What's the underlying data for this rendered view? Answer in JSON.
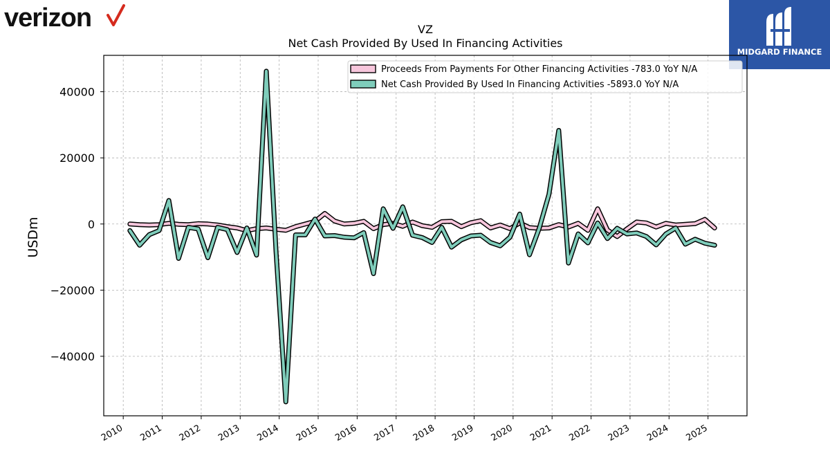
{
  "brand_left": {
    "wordmark": "verizon",
    "checkmark_color": "#d52b1e"
  },
  "brand_right": {
    "name": "MIDGARD FINANCE",
    "background": "#2c56a6"
  },
  "chart_data": {
    "type": "line",
    "title": "VZ",
    "subtitle": "Net Cash Provided By Used In Financing Activities",
    "ylabel": "USDm",
    "xlabel": "",
    "xlim": [
      2009.5,
      2026.0
    ],
    "ylim": [
      -58000,
      51000
    ],
    "x_ticks": [
      2010,
      2011,
      2012,
      2013,
      2014,
      2015,
      2016,
      2017,
      2018,
      2019,
      2020,
      2021,
      2022,
      2023,
      2024,
      2025
    ],
    "x_tick_labels": [
      "2010",
      "2011",
      "2012",
      "2013",
      "2014",
      "2015",
      "2016",
      "2017",
      "2018",
      "2019",
      "2020",
      "2021",
      "2022",
      "2023",
      "2024",
      "2025"
    ],
    "y_ticks": [
      -40000,
      -20000,
      0,
      20000,
      40000
    ],
    "y_tick_labels": [
      "−40000",
      "−20000",
      "0",
      "20000",
      "40000"
    ],
    "grid": true,
    "legend_position": "top-right",
    "x": [
      2010.17,
      2010.42,
      2010.67,
      2010.92,
      2011.17,
      2011.42,
      2011.67,
      2011.92,
      2012.17,
      2012.42,
      2012.67,
      2012.92,
      2013.17,
      2013.42,
      2013.67,
      2013.92,
      2014.17,
      2014.42,
      2014.67,
      2014.92,
      2015.17,
      2015.42,
      2015.67,
      2015.92,
      2016.17,
      2016.42,
      2016.67,
      2016.92,
      2017.17,
      2017.42,
      2017.67,
      2017.92,
      2018.17,
      2018.42,
      2018.67,
      2018.92,
      2019.17,
      2019.42,
      2019.67,
      2019.92,
      2020.17,
      2020.42,
      2020.67,
      2020.92,
      2021.17,
      2021.42,
      2021.67,
      2021.92,
      2022.17,
      2022.42,
      2022.67,
      2022.92,
      2023.17,
      2023.42,
      2023.67,
      2023.92,
      2024.17,
      2024.42,
      2024.67,
      2024.92,
      2025.17,
      2025.42
    ],
    "series": [
      {
        "name": "Proceeds From Payments For Other Financing Activities",
        "legend_label": "Proceeds From Payments For Other Financing Activities  -783.0 YoY N/A",
        "color": "#f7c6dc",
        "values": [
          0,
          -200,
          -300,
          -200,
          200,
          -100,
          -200,
          100,
          0,
          -300,
          -800,
          -1200,
          -2000,
          -1400,
          -1200,
          -1600,
          -1900,
          -800,
          0,
          800,
          3200,
          900,
          0,
          200,
          800,
          -1400,
          -200,
          200,
          -700,
          600,
          -500,
          -1000,
          700,
          800,
          -800,
          400,
          1000,
          -1200,
          -300,
          -1400,
          300,
          -1100,
          -1300,
          -1200,
          -200,
          -900,
          200,
          -1900,
          4600,
          -1800,
          -3800,
          -1500,
          600,
          300,
          -900,
          200,
          -300,
          -100,
          100,
          1400,
          -1200,
          0
        ],
        "note": "final plotted value precedes partial last point"
      },
      {
        "name": "Net Cash Provided By Used In Financing Activities",
        "legend_label": "Net Cash Provided By Used In Financing Activities  -5893.0 YoY N/A",
        "color": "#7fcdbb",
        "values": [
          -2000,
          -6400,
          -3200,
          -2000,
          7100,
          -10400,
          -1000,
          -1500,
          -10200,
          -1000,
          -1700,
          -8600,
          -1200,
          -9400,
          46200,
          -8400,
          -53800,
          -3300,
          -3300,
          1500,
          -3600,
          -3500,
          -4000,
          -4200,
          -2600,
          -15000,
          4600,
          -1300,
          5200,
          -3400,
          -4100,
          -5600,
          -1000,
          -7000,
          -4800,
          -3600,
          -3400,
          -5600,
          -6600,
          -4000,
          3000,
          -9300,
          -1300,
          9000,
          28300,
          -11800,
          -3000,
          -5700,
          300,
          -4400,
          -1300,
          -3000,
          -2700,
          -3800,
          -6300,
          -3000,
          -1200,
          -6100,
          -4600,
          -5800,
          -6400,
          0
        ],
        "note": "final plotted value precedes partial last point"
      }
    ]
  }
}
